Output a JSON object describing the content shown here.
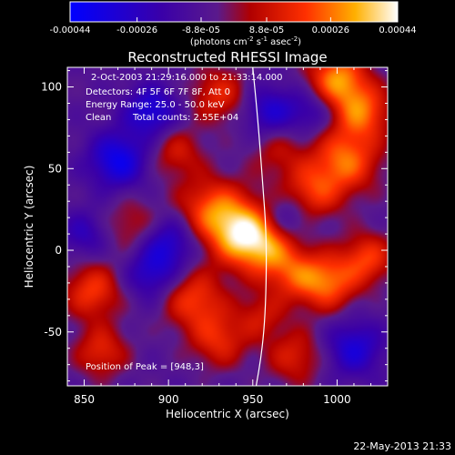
{
  "chart_data": {
    "type": "heatmap",
    "title": "Reconstructed RHESSI Image",
    "xlabel": "Heliocentric X (arcsec)",
    "ylabel": "Heliocentric Y (arcsec)",
    "xlim": [
      840,
      1030
    ],
    "ylim": [
      -83,
      112
    ],
    "x_ticks": [
      850,
      900,
      950,
      1000
    ],
    "y_ticks": [
      -50,
      0,
      50,
      100
    ],
    "colorbar": {
      "range": [
        -0.00044,
        0.00044
      ],
      "tick_values": [
        -0.00044,
        -0.00026,
        -8.8e-05,
        8.8e-05,
        0.00026,
        0.00044
      ],
      "tick_labels": [
        "-0.00044",
        "-0.00026",
        "-8.8e-05",
        "8.8e-05",
        "0.00026",
        "0.00044"
      ],
      "unit_main": "(photons cm",
      "unit_sup1": "-2",
      "unit_mid": " s",
      "unit_sup2": "-1",
      "unit_tail": " asec",
      "unit_sup3": "-2",
      "unit_close": ")"
    },
    "info": {
      "time_range": "2-Oct-2003 21:29:16.000 to 21:33:14.000",
      "detectors": "Detectors: 4F 5F 6F 7F 8F, Att 0",
      "energy": "Energy Range: 25.0 - 50.0 keV",
      "algorithm": "Clean",
      "counts": "Total counts: 2.55E+04"
    },
    "peak_label": "Position of Peak = [948,3]",
    "peak": [
      948,
      3
    ],
    "limb_x": [
      950,
      953,
      956,
      958,
      958,
      957,
      955,
      952
    ],
    "limb_y": [
      112,
      80,
      40,
      10,
      -20,
      -45,
      -65,
      -83
    ],
    "blobs": [
      {
        "x": 945,
        "y": 10,
        "amp": 0.00044,
        "sigma": 14
      },
      {
        "x": 925,
        "y": 25,
        "amp": 0.00028,
        "sigma": 14
      },
      {
        "x": 960,
        "y": 0,
        "amp": 0.0002,
        "sigma": 12
      },
      {
        "x": 1005,
        "y": 55,
        "amp": 0.00032,
        "sigma": 14
      },
      {
        "x": 1000,
        "y": 105,
        "amp": 0.00036,
        "sigma": 12
      },
      {
        "x": 1015,
        "y": 85,
        "amp": 0.0003,
        "sigma": 12
      },
      {
        "x": 985,
        "y": 35,
        "amp": 0.00024,
        "sigma": 12
      },
      {
        "x": 995,
        "y": -20,
        "amp": 0.0003,
        "sigma": 12
      },
      {
        "x": 1018,
        "y": -5,
        "amp": 0.00026,
        "sigma": 11
      },
      {
        "x": 975,
        "y": -15,
        "amp": 0.00022,
        "sigma": 12
      },
      {
        "x": 915,
        "y": -30,
        "amp": 0.00026,
        "sigma": 13
      },
      {
        "x": 930,
        "y": -55,
        "amp": 0.00022,
        "sigma": 12
      },
      {
        "x": 855,
        "y": -25,
        "amp": 0.00026,
        "sigma": 12
      },
      {
        "x": 860,
        "y": -62,
        "amp": 0.00022,
        "sigma": 11
      },
      {
        "x": 930,
        "y": 95,
        "amp": 0.00022,
        "sigma": 12
      },
      {
        "x": 905,
        "y": 60,
        "amp": 0.00018,
        "sigma": 11
      },
      {
        "x": 880,
        "y": 15,
        "amp": 0.00016,
        "sigma": 12
      },
      {
        "x": 965,
        "y": 60,
        "amp": 0.00014,
        "sigma": 12
      },
      {
        "x": 975,
        "y": -65,
        "amp": 0.0002,
        "sigma": 12
      },
      {
        "x": 955,
        "y": -40,
        "amp": 0.00016,
        "sigma": 10
      },
      {
        "x": 870,
        "y": 55,
        "amp": -0.0003,
        "sigma": 12
      },
      {
        "x": 890,
        "y": 85,
        "amp": -0.00026,
        "sigma": 11
      },
      {
        "x": 900,
        "y": 5,
        "amp": -0.00024,
        "sigma": 12
      },
      {
        "x": 890,
        "y": -15,
        "amp": -0.0002,
        "sigma": 11
      },
      {
        "x": 960,
        "y": 85,
        "amp": -0.00022,
        "sigma": 11
      },
      {
        "x": 1010,
        "y": -60,
        "amp": -0.00024,
        "sigma": 12
      },
      {
        "x": 970,
        "y": 20,
        "amp": -0.00016,
        "sigma": 10
      },
      {
        "x": 850,
        "y": 10,
        "amp": -0.00016,
        "sigma": 10
      },
      {
        "x": 985,
        "y": 85,
        "amp": -0.00016,
        "sigma": 10
      }
    ]
  },
  "footer_date": "22-May-2013 21:33"
}
